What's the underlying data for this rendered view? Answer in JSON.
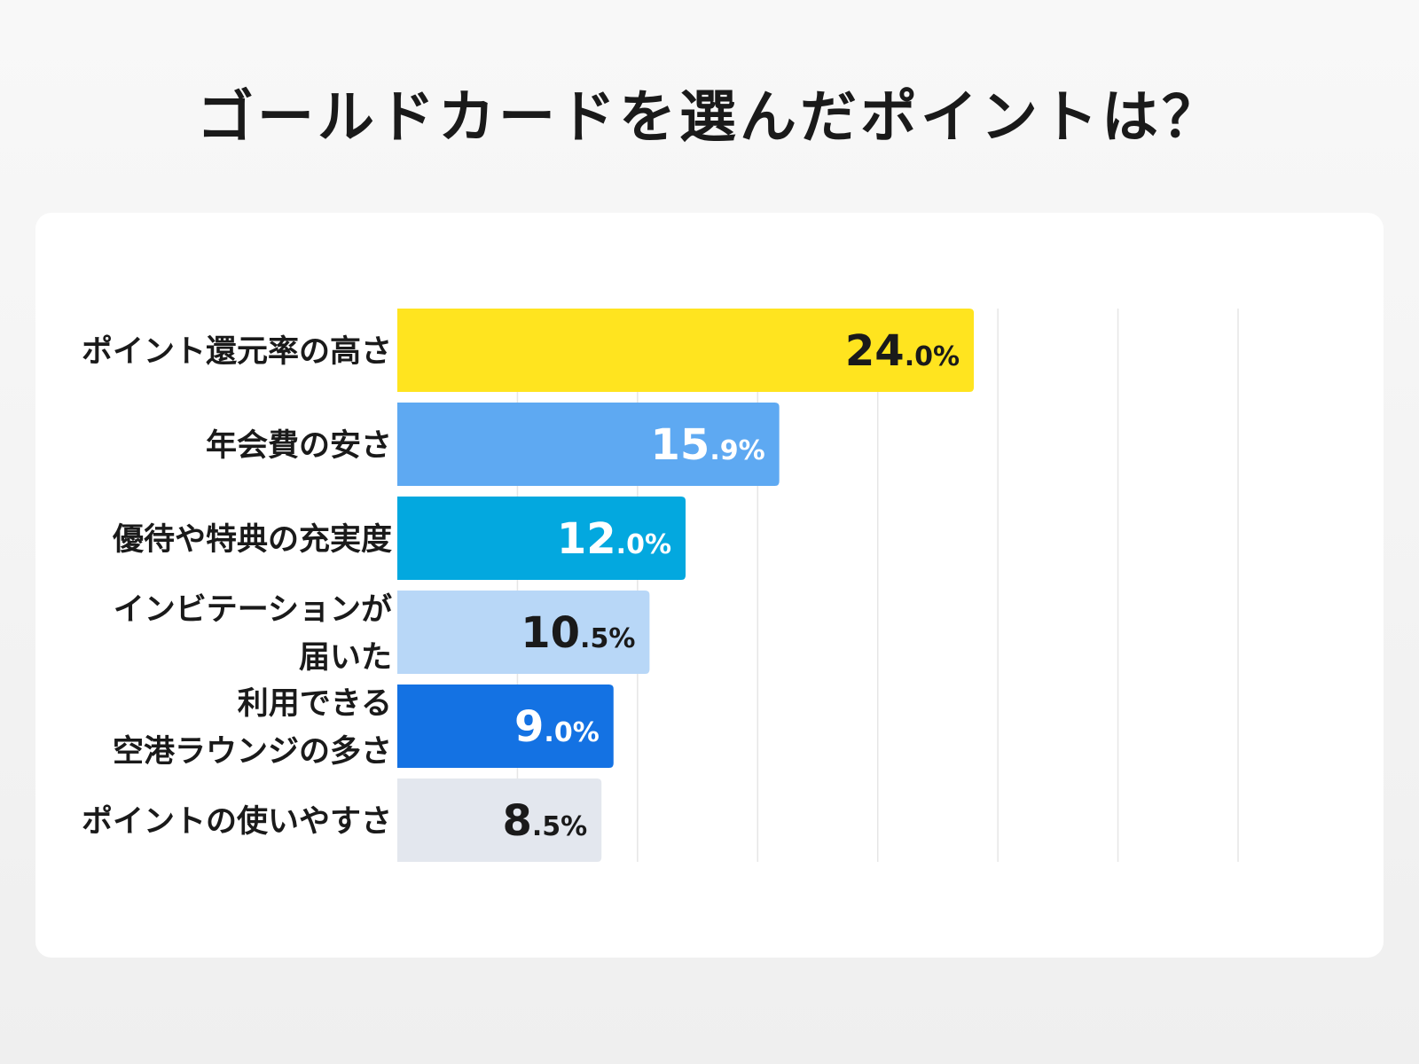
{
  "title": "ゴールドカードを選んだポイントは？",
  "chart_data": {
    "type": "bar",
    "orientation": "horizontal",
    "title": "ゴールドカードを選んだポイントは？",
    "xlabel": "",
    "ylabel": "",
    "xlim": [
      0,
      35
    ],
    "grid": true,
    "categories": [
      [
        "ポイント還元率の高さ"
      ],
      [
        "年会費の安さ"
      ],
      [
        "優待や特典の充実度"
      ],
      [
        "インビテーションが",
        "届いた"
      ],
      [
        "利用できる",
        "空港ラウンジの多さ"
      ],
      [
        "ポイントの使いやすさ"
      ]
    ],
    "values": [
      24.0,
      15.9,
      12.0,
      10.5,
      9.0,
      8.5
    ],
    "value_labels": [
      {
        "int": "24",
        "dec": ".0%"
      },
      {
        "int": "15",
        "dec": ".9%"
      },
      {
        "int": "12",
        "dec": ".0%"
      },
      {
        "int": "10",
        "dec": ".5%"
      },
      {
        "int": "9",
        "dec": ".0%"
      },
      {
        "int": "8",
        "dec": ".5%"
      }
    ],
    "bar_colors": [
      "#ffe41f",
      "#5ea9f2",
      "#03a8df",
      "#b8d7f7",
      "#1472e3",
      "#e3e7ee"
    ],
    "label_colors": [
      "#1a1a1a",
      "#ffffff",
      "#ffffff",
      "#1a1a1a",
      "#ffffff",
      "#1a1a1a"
    ]
  }
}
